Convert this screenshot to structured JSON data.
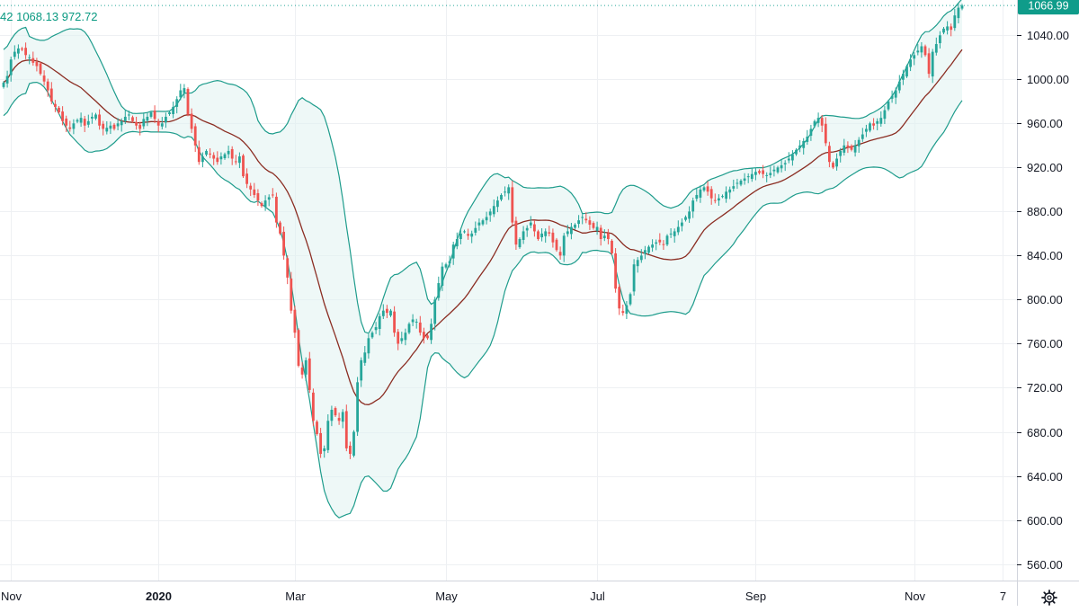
{
  "legend": {
    "prefix": "42",
    "upper": "1068.13",
    "lower": "972.72"
  },
  "price_tag": "1066.99",
  "icons": {
    "settings": "gear-icon"
  },
  "colors": {
    "up": "#26a69a",
    "down": "#ef5350",
    "band": "#1e9c8c",
    "band_fill": "#e0f2f0",
    "basis": "#8b2d22",
    "grid": "#eef0f3",
    "tag_bg": "#0f9c8a"
  },
  "chart_data": {
    "type": "candlestick",
    "indicator": "Bollinger Bands",
    "y_ticks": [
      560,
      600,
      640,
      680,
      720,
      760,
      800,
      840,
      880,
      920,
      960,
      1000,
      1040
    ],
    "y_tick_labels": [
      "560.00",
      "600.00",
      "640.00",
      "680.00",
      "720.00",
      "760.00",
      "800.00",
      "840.00",
      "880.00",
      "920.00",
      "960.00",
      "1000.00",
      "1040.00"
    ],
    "ylim": [
      545,
      1072
    ],
    "x_ticks": [
      {
        "label": "Nov",
        "index": 2
      },
      {
        "label": "2020",
        "index": 42
      },
      {
        "label": "Mar",
        "index": 79
      },
      {
        "label": "May",
        "index": 120
      },
      {
        "label": "Jul",
        "index": 161
      },
      {
        "label": "Sep",
        "index": 204
      },
      {
        "label": "Nov",
        "index": 247
      },
      {
        "label": "7",
        "index": 271
      }
    ],
    "last_price": 1066.99,
    "close": [
      997,
      1003,
      1018,
      1025,
      1028,
      1027,
      1022,
      1020,
      1015,
      1012,
      1005,
      998,
      990,
      980,
      975,
      970,
      962,
      958,
      955,
      960,
      963,
      965,
      958,
      962,
      966,
      968,
      958,
      955,
      956,
      958,
      955,
      960,
      962,
      966,
      968,
      962,
      958,
      955,
      964,
      966,
      970,
      964,
      958,
      960,
      966,
      970,
      975,
      982,
      990,
      992,
      968,
      955,
      940,
      925,
      930,
      935,
      932,
      928,
      925,
      930,
      932,
      935,
      928,
      925,
      930,
      912,
      905,
      900,
      895,
      890,
      885,
      890,
      893,
      895,
      870,
      860,
      840,
      820,
      790,
      770,
      740,
      732,
      745,
      718,
      690,
      678,
      660,
      665,
      690,
      700,
      695,
      690,
      698,
      665,
      660,
      680,
      725,
      745,
      752,
      765,
      770,
      775,
      785,
      790,
      788,
      790,
      770,
      760,
      765,
      770,
      778,
      782,
      780,
      770,
      765,
      765,
      778,
      800,
      815,
      830,
      832,
      835,
      850,
      855,
      860,
      862,
      858,
      860,
      865,
      870,
      872,
      875,
      880,
      885,
      890,
      895,
      898,
      902,
      870,
      850,
      855,
      862,
      865,
      870,
      862,
      855,
      860,
      862,
      860,
      852,
      845,
      840,
      858,
      862,
      866,
      868,
      872,
      875,
      872,
      868,
      865,
      866,
      855,
      858,
      855,
      842,
      810,
      792,
      788,
      795,
      805,
      832,
      836,
      840,
      845,
      848,
      850,
      852,
      852,
      850,
      858,
      860,
      862,
      866,
      870,
      875,
      880,
      890,
      895,
      900,
      902,
      898,
      892,
      890,
      892,
      894,
      898,
      900,
      903,
      906,
      908,
      910,
      912,
      914,
      916,
      915,
      914,
      913,
      915,
      918,
      920,
      922,
      924,
      928,
      932,
      936,
      940,
      944,
      948,
      955,
      962,
      965,
      958,
      942,
      925,
      920,
      928,
      935,
      940,
      938,
      936,
      940,
      945,
      950,
      955,
      960,
      958,
      962,
      965,
      972,
      980,
      985,
      990,
      998,
      1005,
      1012,
      1018,
      1022,
      1026,
      1030,
      1022,
      1005,
      1025,
      1032,
      1040,
      1046,
      1048,
      1045,
      1058,
      1065,
      1067
    ]
  }
}
